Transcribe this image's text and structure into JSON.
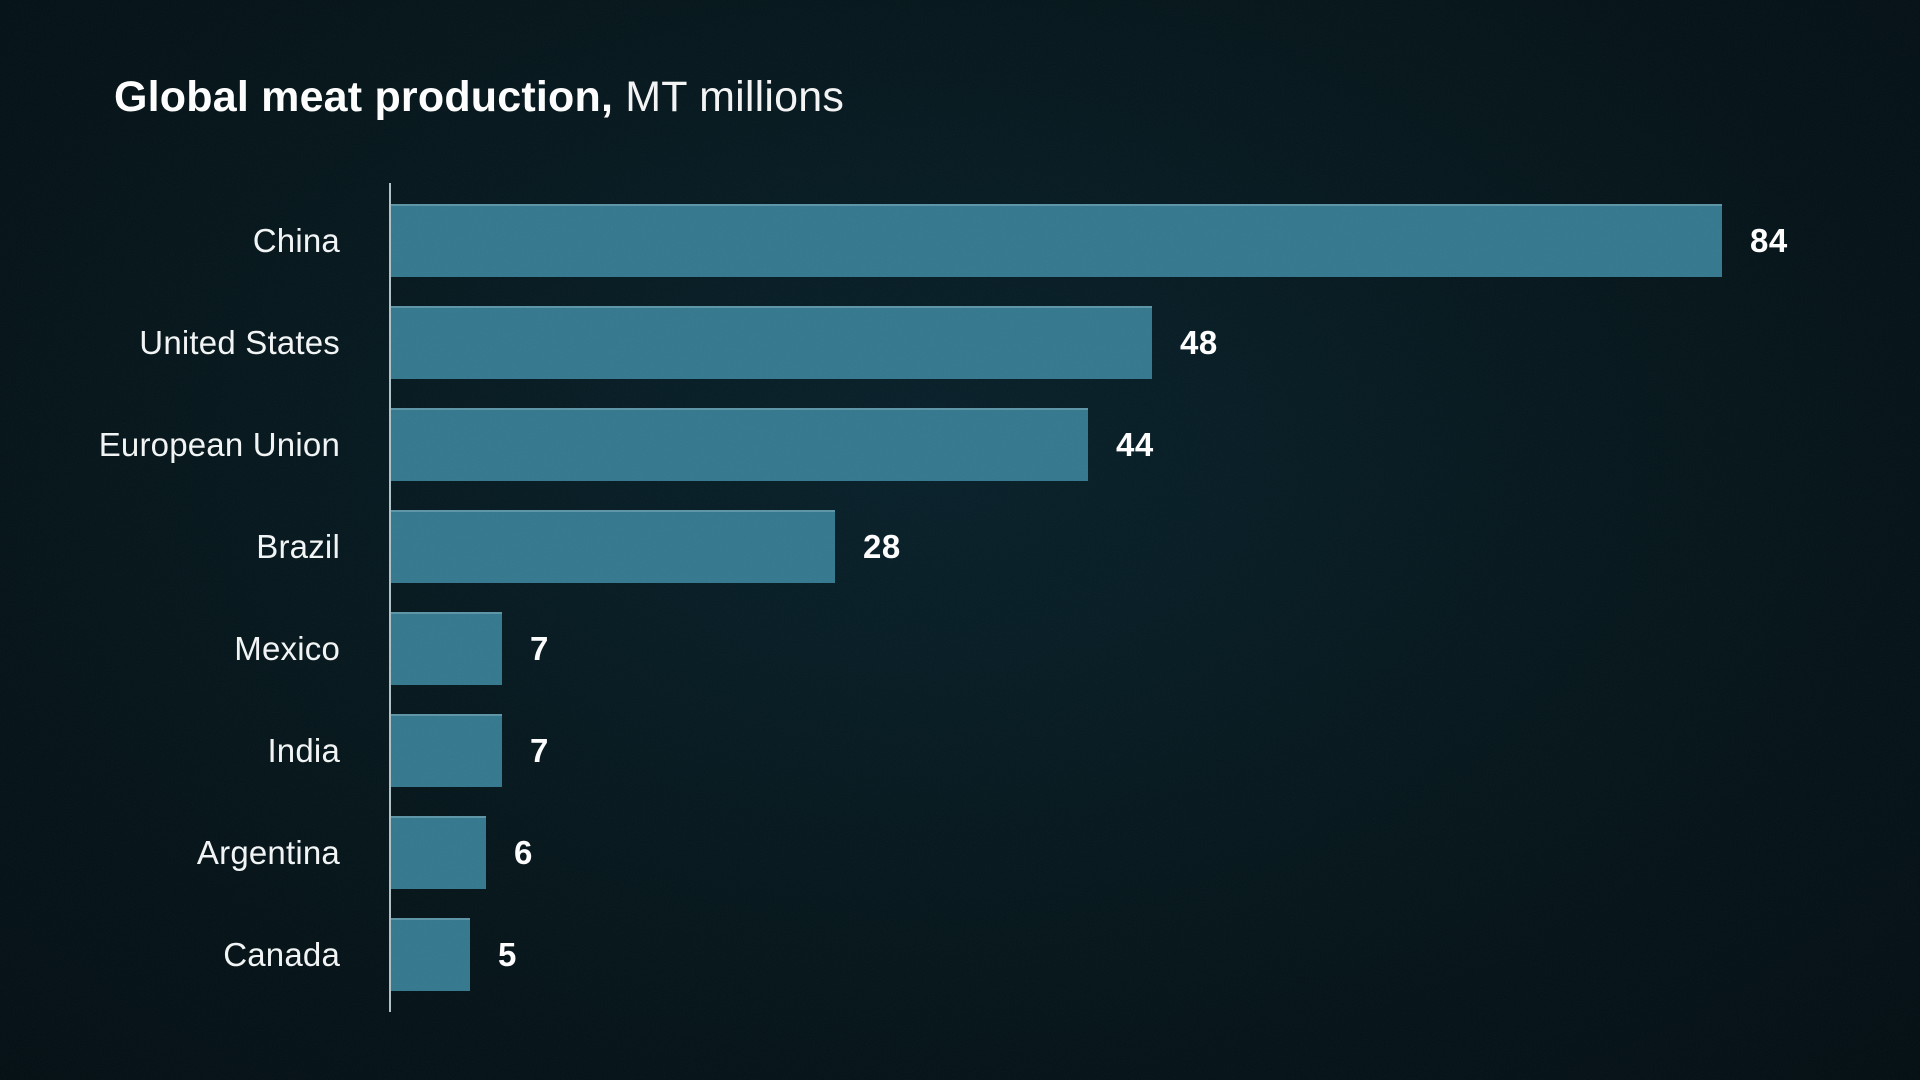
{
  "header": {
    "title_bold": "Global meat production,",
    "title_suffix": " MT millions"
  },
  "chart_data": {
    "type": "bar",
    "orientation": "horizontal",
    "title": "Global meat production, MT millions",
    "unit": "MT millions",
    "categories": [
      "China",
      "United States",
      "European Union",
      "Brazil",
      "Mexico",
      "India",
      "Argentina",
      "Canada"
    ],
    "values": [
      84,
      48,
      44,
      28,
      7,
      7,
      6,
      5
    ],
    "value_labels": [
      "84",
      "48",
      "44",
      "28",
      "7",
      "7",
      "6",
      "5"
    ],
    "xlim": [
      0,
      90
    ],
    "grid": false,
    "legend": "none",
    "value_label_position": "right-of-bar",
    "category_label_position": "left-of-axis"
  },
  "colors": {
    "background": "#041419",
    "bar": "#34788e",
    "bar_top_highlight": "#5d98ab",
    "axis_line": "#c2d5d9",
    "category_text": "#f3f6f6",
    "value_text": "#ffffff",
    "title_text": "#ffffff"
  }
}
